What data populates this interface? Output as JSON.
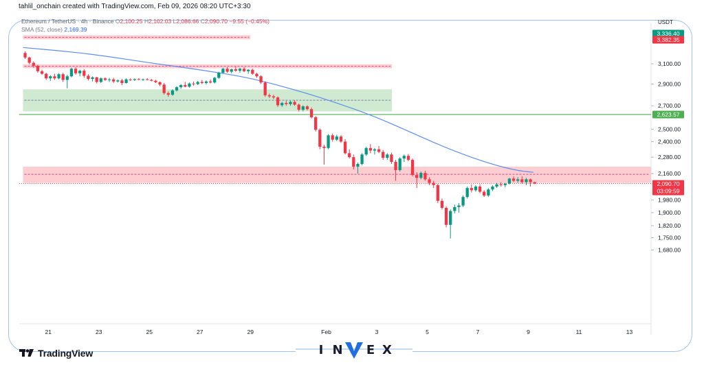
{
  "header": {
    "credit": "tahlil_onchain created with TradingView.com, Feb 09, 2026 08:20 UTC+3:30"
  },
  "legend": {
    "symbol": "Ethereum / TetherUS · 4h · Binance",
    "ohlc": [
      {
        "label": "O",
        "value": "2,100.25"
      },
      {
        "label": "H",
        "value": "2,102.03"
      },
      {
        "label": "L",
        "value": "2,086.66"
      },
      {
        "label": "C",
        "value": "2,090.70"
      }
    ],
    "change": "−9.55 (−0.45%)",
    "sma_label": "SMA (52, close)",
    "sma_value": "2,169.39"
  },
  "price_scale": {
    "unit": "USDT",
    "badges": [
      {
        "text": "3,336.40",
        "color": "#089981"
      },
      {
        "text": "3,382.35",
        "color": "#f23645"
      },
      {
        "text": "2,623.57",
        "color": "#4caf50"
      },
      {
        "text": "2,090.70",
        "sub": "03:09:59",
        "color": "#f23645"
      }
    ]
  },
  "branding": {
    "tradingview": "TradingView",
    "invex_letters": [
      "I",
      "N",
      "E",
      "X"
    ]
  },
  "colors": {
    "up": "#089981",
    "down": "#f23645",
    "sma": "#5b8def",
    "resistance_zone": "#fbc4c9",
    "support_zone": "#c8e6c9",
    "support_line": "#4caf50",
    "frame": "#9fc3ee"
  },
  "chart_data": {
    "type": "candlestick",
    "title": "Ethereum / TetherUS · 4h · Binance",
    "xlabel": "",
    "ylabel": "USDT",
    "scale": "log",
    "ylim": [
      1630,
      3420
    ],
    "x_ticks": [
      "21",
      "23",
      "25",
      "27",
      "29",
      "Feb",
      "3",
      "5",
      "7",
      "9",
      "11",
      "13"
    ],
    "x_tick_days": [
      -11,
      -9,
      -7,
      -5,
      -3,
      0,
      2,
      4,
      6,
      8,
      10,
      12
    ],
    "xlim_days": [
      -12.3,
      12.9
    ],
    "y_ticks": [
      3100,
      2900,
      2700,
      2500,
      2400,
      2280,
      2160,
      1980,
      1900,
      1820,
      1750,
      1680
    ],
    "grid": false,
    "candles": [
      {
        "t": "Jan 20 00:00",
        "o": 3212,
        "h": 3230,
        "l": 3150,
        "c": 3165
      },
      {
        "t": "Jan 20 04:00",
        "o": 3165,
        "h": 3172,
        "l": 3095,
        "c": 3110
      },
      {
        "t": "Jan 20 08:00",
        "o": 3110,
        "h": 3125,
        "l": 3060,
        "c": 3080
      },
      {
        "t": "Jan 20 12:00",
        "o": 3080,
        "h": 3090,
        "l": 3010,
        "c": 3025
      },
      {
        "t": "Jan 20 16:00",
        "o": 3025,
        "h": 3040,
        "l": 2990,
        "c": 3000
      },
      {
        "t": "Jan 20 20:00",
        "o": 3000,
        "h": 3010,
        "l": 2940,
        "c": 2955
      },
      {
        "t": "Jan 21 00:00",
        "o": 2955,
        "h": 2985,
        "l": 2930,
        "c": 2975
      },
      {
        "t": "Jan 21 04:00",
        "o": 2975,
        "h": 3000,
        "l": 2940,
        "c": 2955
      },
      {
        "t": "Jan 21 08:00",
        "o": 2955,
        "h": 3005,
        "l": 2945,
        "c": 2995
      },
      {
        "t": "Jan 21 12:00",
        "o": 2995,
        "h": 3010,
        "l": 2920,
        "c": 2940
      },
      {
        "t": "Jan 21 16:00",
        "o": 2940,
        "h": 2990,
        "l": 2860,
        "c": 2975
      },
      {
        "t": "Jan 21 20:00",
        "o": 2975,
        "h": 3060,
        "l": 2965,
        "c": 3050
      },
      {
        "t": "Jan 22 00:00",
        "o": 3050,
        "h": 3065,
        "l": 2990,
        "c": 3005
      },
      {
        "t": "Jan 22 04:00",
        "o": 3005,
        "h": 3040,
        "l": 2975,
        "c": 3030
      },
      {
        "t": "Jan 22 08:00",
        "o": 3030,
        "h": 3045,
        "l": 2960,
        "c": 2980
      },
      {
        "t": "Jan 22 12:00",
        "o": 2980,
        "h": 2995,
        "l": 2935,
        "c": 2950
      },
      {
        "t": "Jan 22 16:00",
        "o": 2950,
        "h": 2975,
        "l": 2925,
        "c": 2965
      },
      {
        "t": "Jan 22 20:00",
        "o": 2965,
        "h": 2970,
        "l": 2905,
        "c": 2920
      },
      {
        "t": "Jan 23 00:00",
        "o": 2920,
        "h": 2965,
        "l": 2910,
        "c": 2955
      },
      {
        "t": "Jan 23 04:00",
        "o": 2955,
        "h": 2965,
        "l": 2930,
        "c": 2940
      },
      {
        "t": "Jan 23 08:00",
        "o": 2940,
        "h": 2960,
        "l": 2920,
        "c": 2945
      },
      {
        "t": "Jan 23 12:00",
        "o": 2945,
        "h": 2960,
        "l": 2910,
        "c": 2925
      },
      {
        "t": "Jan 23 16:00",
        "o": 2925,
        "h": 2945,
        "l": 2915,
        "c": 2935
      },
      {
        "t": "Jan 23 20:00",
        "o": 2935,
        "h": 2950,
        "l": 2890,
        "c": 2910
      },
      {
        "t": "Jan 24 00:00",
        "o": 2910,
        "h": 2955,
        "l": 2905,
        "c": 2945
      },
      {
        "t": "Jan 24 04:00",
        "o": 2945,
        "h": 2955,
        "l": 2930,
        "c": 2940
      },
      {
        "t": "Jan 24 08:00",
        "o": 2940,
        "h": 2955,
        "l": 2930,
        "c": 2948
      },
      {
        "t": "Jan 24 12:00",
        "o": 2948,
        "h": 2958,
        "l": 2938,
        "c": 2942
      },
      {
        "t": "Jan 24 16:00",
        "o": 2942,
        "h": 2952,
        "l": 2932,
        "c": 2946
      },
      {
        "t": "Jan 24 20:00",
        "o": 2946,
        "h": 2956,
        "l": 2936,
        "c": 2940
      },
      {
        "t": "Jan 25 00:00",
        "o": 2940,
        "h": 2950,
        "l": 2926,
        "c": 2932
      },
      {
        "t": "Jan 25 04:00",
        "o": 2932,
        "h": 2940,
        "l": 2910,
        "c": 2918
      },
      {
        "t": "Jan 25 08:00",
        "o": 2918,
        "h": 2925,
        "l": 2880,
        "c": 2895
      },
      {
        "t": "Jan 25 12:00",
        "o": 2895,
        "h": 2910,
        "l": 2800,
        "c": 2815
      },
      {
        "t": "Jan 25 16:00",
        "o": 2815,
        "h": 2830,
        "l": 2780,
        "c": 2800
      },
      {
        "t": "Jan 25 20:00",
        "o": 2800,
        "h": 2850,
        "l": 2790,
        "c": 2840
      },
      {
        "t": "Jan 26 00:00",
        "o": 2840,
        "h": 2880,
        "l": 2830,
        "c": 2870
      },
      {
        "t": "Jan 26 04:00",
        "o": 2870,
        "h": 2900,
        "l": 2855,
        "c": 2890
      },
      {
        "t": "Jan 26 08:00",
        "o": 2890,
        "h": 2920,
        "l": 2870,
        "c": 2875
      },
      {
        "t": "Jan 26 12:00",
        "o": 2875,
        "h": 2915,
        "l": 2865,
        "c": 2905
      },
      {
        "t": "Jan 26 16:00",
        "o": 2905,
        "h": 2925,
        "l": 2885,
        "c": 2900
      },
      {
        "t": "Jan 26 20:00",
        "o": 2900,
        "h": 2930,
        "l": 2890,
        "c": 2920
      },
      {
        "t": "Jan 27 00:00",
        "o": 2920,
        "h": 2940,
        "l": 2900,
        "c": 2910
      },
      {
        "t": "Jan 27 04:00",
        "o": 2910,
        "h": 2935,
        "l": 2895,
        "c": 2925
      },
      {
        "t": "Jan 27 08:00",
        "o": 2925,
        "h": 2945,
        "l": 2905,
        "c": 2915
      },
      {
        "t": "Jan 27 12:00",
        "o": 2915,
        "h": 2970,
        "l": 2905,
        "c": 2960
      },
      {
        "t": "Jan 27 16:00",
        "o": 2960,
        "h": 3020,
        "l": 2950,
        "c": 3010
      },
      {
        "t": "Jan 27 20:00",
        "o": 3010,
        "h": 3060,
        "l": 3000,
        "c": 3050
      },
      {
        "t": "Jan 28 00:00",
        "o": 3050,
        "h": 3065,
        "l": 3010,
        "c": 3020
      },
      {
        "t": "Jan 28 04:00",
        "o": 3020,
        "h": 3050,
        "l": 3005,
        "c": 3045
      },
      {
        "t": "Jan 28 08:00",
        "o": 3045,
        "h": 3070,
        "l": 3020,
        "c": 3030
      },
      {
        "t": "Jan 28 12:00",
        "o": 3030,
        "h": 3060,
        "l": 3010,
        "c": 3050
      },
      {
        "t": "Jan 28 16:00",
        "o": 3050,
        "h": 3065,
        "l": 3015,
        "c": 3025
      },
      {
        "t": "Jan 28 20:00",
        "o": 3025,
        "h": 3045,
        "l": 3000,
        "c": 3040
      },
      {
        "t": "Jan 29 00:00",
        "o": 3040,
        "h": 3050,
        "l": 2990,
        "c": 3000
      },
      {
        "t": "Jan 29 04:00",
        "o": 3000,
        "h": 3010,
        "l": 2960,
        "c": 2975
      },
      {
        "t": "Jan 29 08:00",
        "o": 2975,
        "h": 2985,
        "l": 2900,
        "c": 2915
      },
      {
        "t": "Jan 29 12:00",
        "o": 2915,
        "h": 2925,
        "l": 2780,
        "c": 2795
      },
      {
        "t": "Jan 29 16:00",
        "o": 2795,
        "h": 2810,
        "l": 2770,
        "c": 2785
      },
      {
        "t": "Jan 29 20:00",
        "o": 2785,
        "h": 2800,
        "l": 2760,
        "c": 2775
      },
      {
        "t": "Jan 30 00:00",
        "o": 2775,
        "h": 2785,
        "l": 2690,
        "c": 2705
      },
      {
        "t": "Jan 30 04:00",
        "o": 2705,
        "h": 2735,
        "l": 2690,
        "c": 2725
      },
      {
        "t": "Jan 30 08:00",
        "o": 2725,
        "h": 2745,
        "l": 2700,
        "c": 2715
      },
      {
        "t": "Jan 30 12:00",
        "o": 2715,
        "h": 2745,
        "l": 2700,
        "c": 2735
      },
      {
        "t": "Jan 30 16:00",
        "o": 2735,
        "h": 2750,
        "l": 2700,
        "c": 2710
      },
      {
        "t": "Jan 30 20:00",
        "o": 2710,
        "h": 2720,
        "l": 2650,
        "c": 2665
      },
      {
        "t": "Jan 31 00:00",
        "o": 2665,
        "h": 2705,
        "l": 2650,
        "c": 2695
      },
      {
        "t": "Jan 31 04:00",
        "o": 2695,
        "h": 2705,
        "l": 2660,
        "c": 2670
      },
      {
        "t": "Jan 31 08:00",
        "o": 2670,
        "h": 2685,
        "l": 2590,
        "c": 2600
      },
      {
        "t": "Jan 31 12:00",
        "o": 2600,
        "h": 2610,
        "l": 2480,
        "c": 2495
      },
      {
        "t": "Jan 31 16:00",
        "o": 2495,
        "h": 2505,
        "l": 2340,
        "c": 2360
      },
      {
        "t": "Jan 31 20:00",
        "o": 2360,
        "h": 2375,
        "l": 2225,
        "c": 2350
      },
      {
        "t": "Feb 01 00:00",
        "o": 2350,
        "h": 2460,
        "l": 2340,
        "c": 2450
      },
      {
        "t": "Feb 01 04:00",
        "o": 2450,
        "h": 2465,
        "l": 2400,
        "c": 2415
      },
      {
        "t": "Feb 01 08:00",
        "o": 2415,
        "h": 2455,
        "l": 2405,
        "c": 2440
      },
      {
        "t": "Feb 01 12:00",
        "o": 2440,
        "h": 2450,
        "l": 2390,
        "c": 2400
      },
      {
        "t": "Feb 01 16:00",
        "o": 2400,
        "h": 2420,
        "l": 2300,
        "c": 2310
      },
      {
        "t": "Feb 01 20:00",
        "o": 2310,
        "h": 2340,
        "l": 2270,
        "c": 2280
      },
      {
        "t": "Feb 02 00:00",
        "o": 2280,
        "h": 2300,
        "l": 2190,
        "c": 2210
      },
      {
        "t": "Feb 02 04:00",
        "o": 2210,
        "h": 2240,
        "l": 2160,
        "c": 2230
      },
      {
        "t": "Feb 02 08:00",
        "o": 2230,
        "h": 2310,
        "l": 2220,
        "c": 2300
      },
      {
        "t": "Feb 02 12:00",
        "o": 2300,
        "h": 2360,
        "l": 2290,
        "c": 2350
      },
      {
        "t": "Feb 02 16:00",
        "o": 2350,
        "h": 2380,
        "l": 2310,
        "c": 2330
      },
      {
        "t": "Feb 02 20:00",
        "o": 2330,
        "h": 2350,
        "l": 2300,
        "c": 2340
      },
      {
        "t": "Feb 03 00:00",
        "o": 2340,
        "h": 2365,
        "l": 2310,
        "c": 2320
      },
      {
        "t": "Feb 03 04:00",
        "o": 2320,
        "h": 2335,
        "l": 2260,
        "c": 2275
      },
      {
        "t": "Feb 03 08:00",
        "o": 2275,
        "h": 2310,
        "l": 2260,
        "c": 2300
      },
      {
        "t": "Feb 03 12:00",
        "o": 2300,
        "h": 2315,
        "l": 2230,
        "c": 2245
      },
      {
        "t": "Feb 03 16:00",
        "o": 2245,
        "h": 2260,
        "l": 2110,
        "c": 2185
      },
      {
        "t": "Feb 03 20:00",
        "o": 2185,
        "h": 2280,
        "l": 2175,
        "c": 2270
      },
      {
        "t": "Feb 04 00:00",
        "o": 2270,
        "h": 2300,
        "l": 2245,
        "c": 2290
      },
      {
        "t": "Feb 04 04:00",
        "o": 2290,
        "h": 2305,
        "l": 2250,
        "c": 2260
      },
      {
        "t": "Feb 04 08:00",
        "o": 2260,
        "h": 2270,
        "l": 2140,
        "c": 2150
      },
      {
        "t": "Feb 04 12:00",
        "o": 2150,
        "h": 2170,
        "l": 2060,
        "c": 2130
      },
      {
        "t": "Feb 04 16:00",
        "o": 2130,
        "h": 2175,
        "l": 2120,
        "c": 2165
      },
      {
        "t": "Feb 04 20:00",
        "o": 2165,
        "h": 2180,
        "l": 2110,
        "c": 2120
      },
      {
        "t": "Feb 05 00:00",
        "o": 2120,
        "h": 2135,
        "l": 2080,
        "c": 2095
      },
      {
        "t": "Feb 05 04:00",
        "o": 2095,
        "h": 2110,
        "l": 2060,
        "c": 2080
      },
      {
        "t": "Feb 05 08:00",
        "o": 2080,
        "h": 2090,
        "l": 1960,
        "c": 1975
      },
      {
        "t": "Feb 05 12:00",
        "o": 1975,
        "h": 1990,
        "l": 1920,
        "c": 1930
      },
      {
        "t": "Feb 05 16:00",
        "o": 1930,
        "h": 1940,
        "l": 1810,
        "c": 1825
      },
      {
        "t": "Feb 05 20:00",
        "o": 1825,
        "h": 1920,
        "l": 1745,
        "c": 1910
      },
      {
        "t": "Feb 06 00:00",
        "o": 1910,
        "h": 1950,
        "l": 1895,
        "c": 1935
      },
      {
        "t": "Feb 06 04:00",
        "o": 1935,
        "h": 1960,
        "l": 1900,
        "c": 1945
      },
      {
        "t": "Feb 06 08:00",
        "o": 1945,
        "h": 2010,
        "l": 1935,
        "c": 2000
      },
      {
        "t": "Feb 06 12:00",
        "o": 2000,
        "h": 2070,
        "l": 1990,
        "c": 2060
      },
      {
        "t": "Feb 06 16:00",
        "o": 2060,
        "h": 2085,
        "l": 2030,
        "c": 2045
      },
      {
        "t": "Feb 06 20:00",
        "o": 2045,
        "h": 2080,
        "l": 2035,
        "c": 2070
      },
      {
        "t": "Feb 07 00:00",
        "o": 2070,
        "h": 2085,
        "l": 2025,
        "c": 2035
      },
      {
        "t": "Feb 07 04:00",
        "o": 2035,
        "h": 2045,
        "l": 2000,
        "c": 2010
      },
      {
        "t": "Feb 07 08:00",
        "o": 2010,
        "h": 2060,
        "l": 2000,
        "c": 2050
      },
      {
        "t": "Feb 07 12:00",
        "o": 2050,
        "h": 2080,
        "l": 2040,
        "c": 2070
      },
      {
        "t": "Feb 07 16:00",
        "o": 2070,
        "h": 2095,
        "l": 2060,
        "c": 2085
      },
      {
        "t": "Feb 07 20:00",
        "o": 2085,
        "h": 2100,
        "l": 2070,
        "c": 2080
      },
      {
        "t": "Feb 08 00:00",
        "o": 2080,
        "h": 2095,
        "l": 2065,
        "c": 2090
      },
      {
        "t": "Feb 08 04:00",
        "o": 2090,
        "h": 2130,
        "l": 2085,
        "c": 2125
      },
      {
        "t": "Feb 08 08:00",
        "o": 2125,
        "h": 2140,
        "l": 2100,
        "c": 2110
      },
      {
        "t": "Feb 08 12:00",
        "o": 2110,
        "h": 2135,
        "l": 2095,
        "c": 2120
      },
      {
        "t": "Feb 08 16:00",
        "o": 2120,
        "h": 2140,
        "l": 2090,
        "c": 2100
      },
      {
        "t": "Feb 08 20:00",
        "o": 2100,
        "h": 2130,
        "l": 2080,
        "c": 2120
      },
      {
        "t": "Feb 09 00:00",
        "o": 2120,
        "h": 2125,
        "l": 2070,
        "c": 2100
      },
      {
        "t": "Feb 09 04:00",
        "o": 2100.25,
        "h": 2102.03,
        "l": 2086.66,
        "c": 2090.7
      }
    ],
    "sma": {
      "name": "SMA (52, close)",
      "points": [
        {
          "d": -12.0,
          "v": 3270
        },
        {
          "d": -10.5,
          "v": 3235
        },
        {
          "d": -9.0,
          "v": 3190
        },
        {
          "d": -7.0,
          "v": 3110
        },
        {
          "d": -5.0,
          "v": 3040
        },
        {
          "d": -3.0,
          "v": 2960
        },
        {
          "d": -1.0,
          "v": 2830
        },
        {
          "d": 0.5,
          "v": 2720
        },
        {
          "d": 2.0,
          "v": 2600
        },
        {
          "d": 3.5,
          "v": 2460
        },
        {
          "d": 5.0,
          "v": 2330
        },
        {
          "d": 6.5,
          "v": 2230
        },
        {
          "d": 7.6,
          "v": 2180
        },
        {
          "d": 8.2,
          "v": 2169.39
        }
      ]
    },
    "zones": [
      {
        "kind": "resistance",
        "from_day": -12.0,
        "to_day": -3.0,
        "low": 3360,
        "high": 3405,
        "mid": 3382
      },
      {
        "kind": "resistance",
        "from_day": -12.0,
        "to_day": 2.6,
        "low": 3055,
        "high": 3095,
        "mid": 3075
      },
      {
        "kind": "support",
        "from_day": -12.0,
        "to_day": 2.6,
        "low": 2650,
        "high": 2850,
        "mid": 2750
      },
      {
        "kind": "resistance",
        "from_day": -12.0,
        "to_day": 12.9,
        "low": 2095,
        "high": 2210,
        "mid": 2155
      }
    ],
    "support_line": 2623.57,
    "last_price": 2090.7
  }
}
